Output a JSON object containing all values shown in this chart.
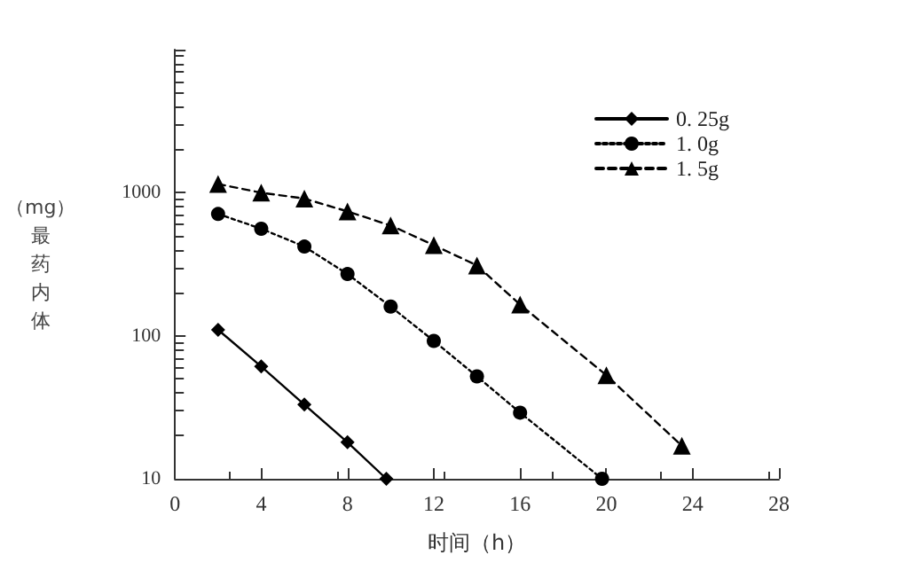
{
  "chart_data": {
    "type": "line",
    "xlabel": "时间（h）",
    "ylabel": "（mg）最药内体",
    "xlim": [
      0,
      28
    ],
    "xticks": [
      0,
      4,
      8,
      12,
      16,
      20,
      24,
      28
    ],
    "ylim": [
      10,
      10000
    ],
    "yticks": [
      10,
      100,
      1000,
      {
        "value": 10000,
        "label": null
      }
    ],
    "log": "y",
    "grid": false,
    "legend": "top right",
    "series": [
      {
        "name": "0. 25g",
        "color": "#000000",
        "marker": "diamond",
        "line_style": "solid",
        "x": [
          2,
          4,
          6,
          8,
          9.8
        ],
        "values": [
          110,
          61,
          33,
          18,
          10
        ]
      },
      {
        "name": "1. 0g",
        "color": "#000000",
        "marker": "circle",
        "line_style": "dotted",
        "x": [
          2,
          4,
          6,
          8,
          10,
          12,
          14,
          16,
          19.8
        ],
        "values": [
          710,
          560,
          420,
          270,
          160,
          92,
          52,
          29,
          10
        ]
      },
      {
        "name": "1. 5g",
        "color": "#000000",
        "marker": "triangle",
        "line_style": "dashed",
        "x": [
          2,
          4,
          6,
          8,
          10,
          12,
          14,
          16,
          20,
          23.5
        ],
        "values": [
          1150,
          1000,
          910,
          740,
          590,
          430,
          310,
          165,
          53,
          17
        ]
      }
    ]
  }
}
